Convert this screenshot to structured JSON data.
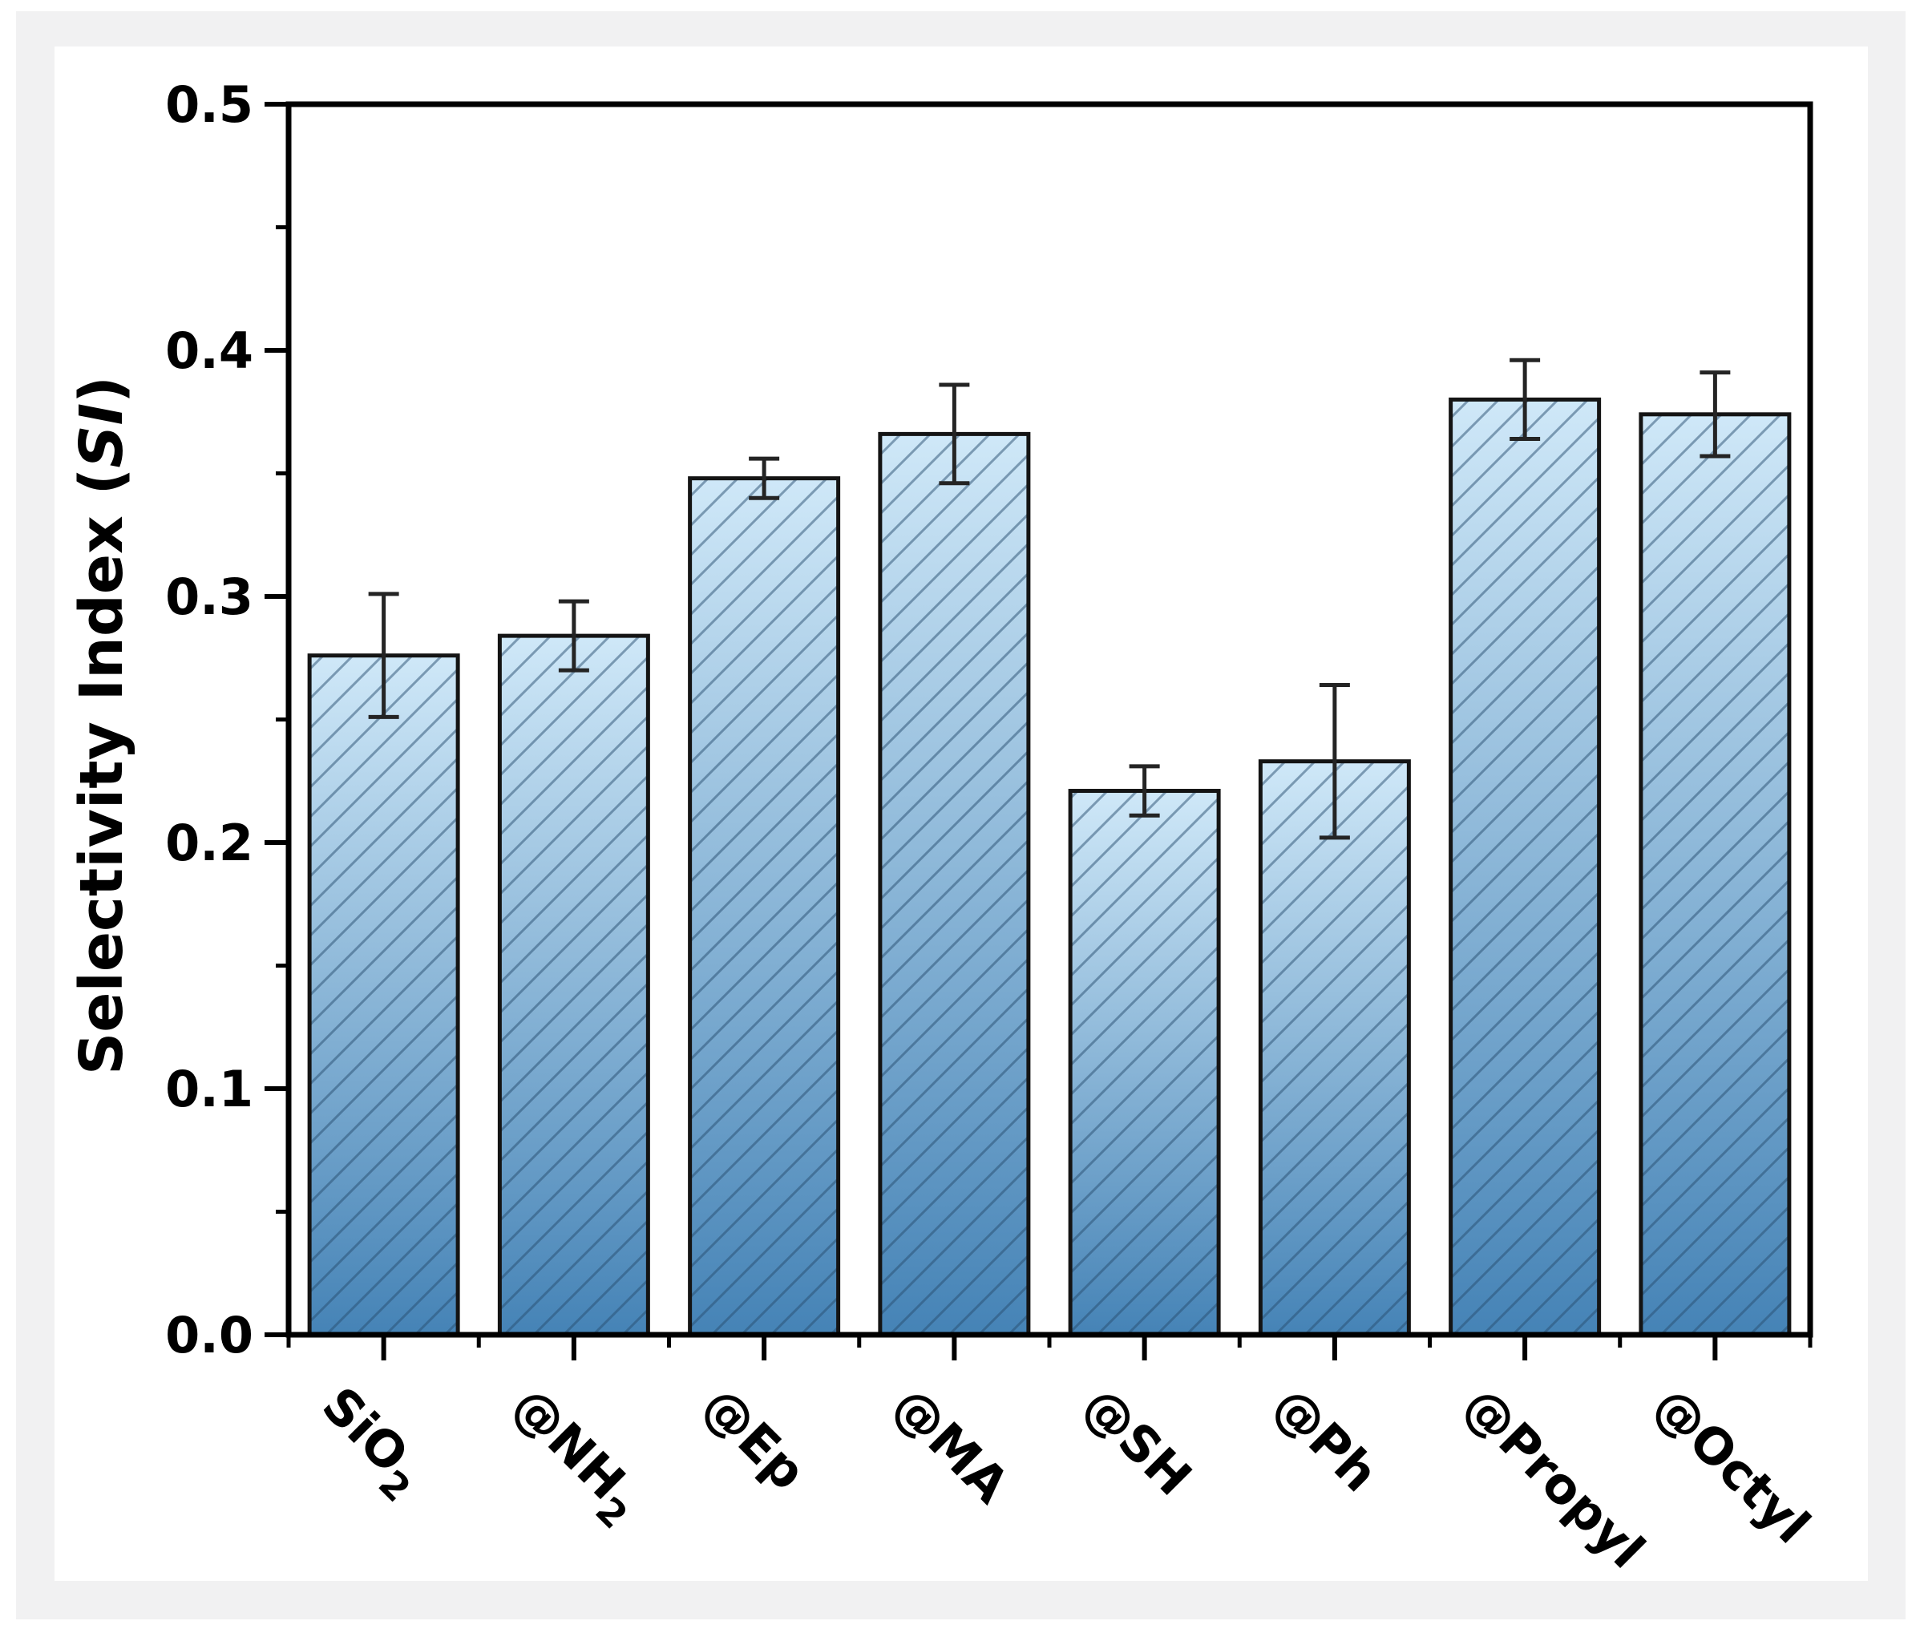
{
  "figure": {
    "page_background": "#ffffff",
    "frame_color": "#f1f1f2",
    "panel_color": "#ffffff"
  },
  "chart_data": {
    "type": "bar",
    "title": "",
    "xlabel": "",
    "ylabel_parts": [
      {
        "t": "Selectivity Index ("
      },
      {
        "t": "SI",
        "italic": true
      },
      {
        "t": ")"
      }
    ],
    "categories": [
      {
        "parts": [
          {
            "t": "SiO"
          },
          {
            "t": "2",
            "sub": true
          }
        ]
      },
      {
        "parts": [
          {
            "t": "@NH"
          },
          {
            "t": "2",
            "sub": true
          }
        ]
      },
      {
        "parts": [
          {
            "t": "@Ep"
          }
        ]
      },
      {
        "parts": [
          {
            "t": "@MA"
          }
        ]
      },
      {
        "parts": [
          {
            "t": "@SH"
          }
        ]
      },
      {
        "parts": [
          {
            "t": "@Ph"
          }
        ]
      },
      {
        "parts": [
          {
            "t": "@Propyl"
          }
        ]
      },
      {
        "parts": [
          {
            "t": "@Octyl"
          }
        ]
      }
    ],
    "values": [
      0.276,
      0.284,
      0.348,
      0.366,
      0.221,
      0.233,
      0.38,
      0.374
    ],
    "errors": [
      0.025,
      0.014,
      0.008,
      0.02,
      0.01,
      0.031,
      0.016,
      0.017
    ],
    "ylim": [
      0.0,
      0.5
    ],
    "ytick_values": [
      0.0,
      0.1,
      0.2,
      0.3,
      0.4,
      0.5
    ],
    "ytick_labels": [
      "0.0",
      "0.1",
      "0.2",
      "0.3",
      "0.4",
      "0.5"
    ],
    "yminor_step": 0.05,
    "grid": false,
    "legend": null,
    "error_bars": true,
    "bar_hatch": "diagonal-forward",
    "colors": {
      "bar_gradient_top": "#cfe8f8",
      "bar_gradient_bottom": "#4583b6",
      "bar_border": "#141414",
      "hatch_line": "rgba(40,78,112,0.5)",
      "error_bar": "#242424",
      "axis": "#000000",
      "text": "#000000"
    }
  }
}
